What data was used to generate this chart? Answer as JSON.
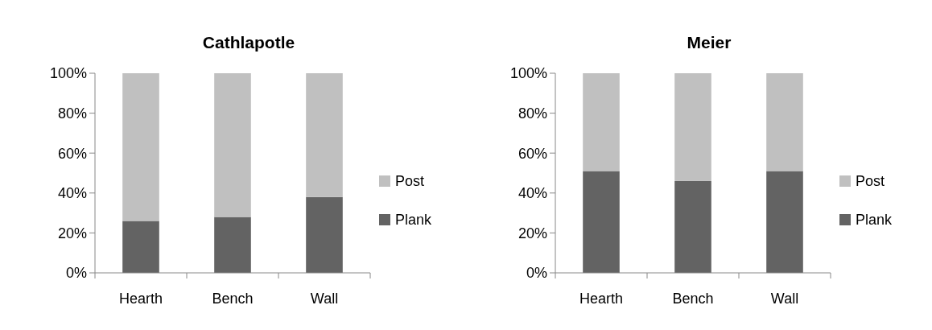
{
  "chart_data": [
    {
      "type": "bar",
      "title": "Cathlapotle",
      "categories": [
        "Hearth",
        "Bench",
        "Wall"
      ],
      "stacked": true,
      "ylim": [
        0,
        100
      ],
      "yticks": [
        {
          "value": 0,
          "label": "0%"
        },
        {
          "value": 20,
          "label": "20%"
        },
        {
          "value": 40,
          "label": "40%"
        },
        {
          "value": 60,
          "label": "60%"
        },
        {
          "value": 80,
          "label": "80%"
        },
        {
          "value": 100,
          "label": "100%"
        }
      ],
      "legend": "right",
      "grid": false,
      "series": [
        {
          "name": "Plank",
          "color": "#636363",
          "values": [
            26,
            28,
            38
          ]
        },
        {
          "name": "Post",
          "color": "#c0c0c0",
          "values": [
            74,
            72,
            62
          ]
        }
      ]
    },
    {
      "type": "bar",
      "title": "Meier",
      "categories": [
        "Hearth",
        "Bench",
        "Wall"
      ],
      "stacked": true,
      "ylim": [
        0,
        100
      ],
      "yticks": [
        {
          "value": 0,
          "label": "0%"
        },
        {
          "value": 20,
          "label": "20%"
        },
        {
          "value": 40,
          "label": "40%"
        },
        {
          "value": 60,
          "label": "60%"
        },
        {
          "value": 80,
          "label": "80%"
        },
        {
          "value": 100,
          "label": "100%"
        }
      ],
      "legend": "right",
      "grid": false,
      "series": [
        {
          "name": "Plank",
          "color": "#636363",
          "values": [
            51,
            46,
            51
          ]
        },
        {
          "name": "Post",
          "color": "#c0c0c0",
          "values": [
            49,
            54,
            49
          ]
        }
      ]
    }
  ]
}
